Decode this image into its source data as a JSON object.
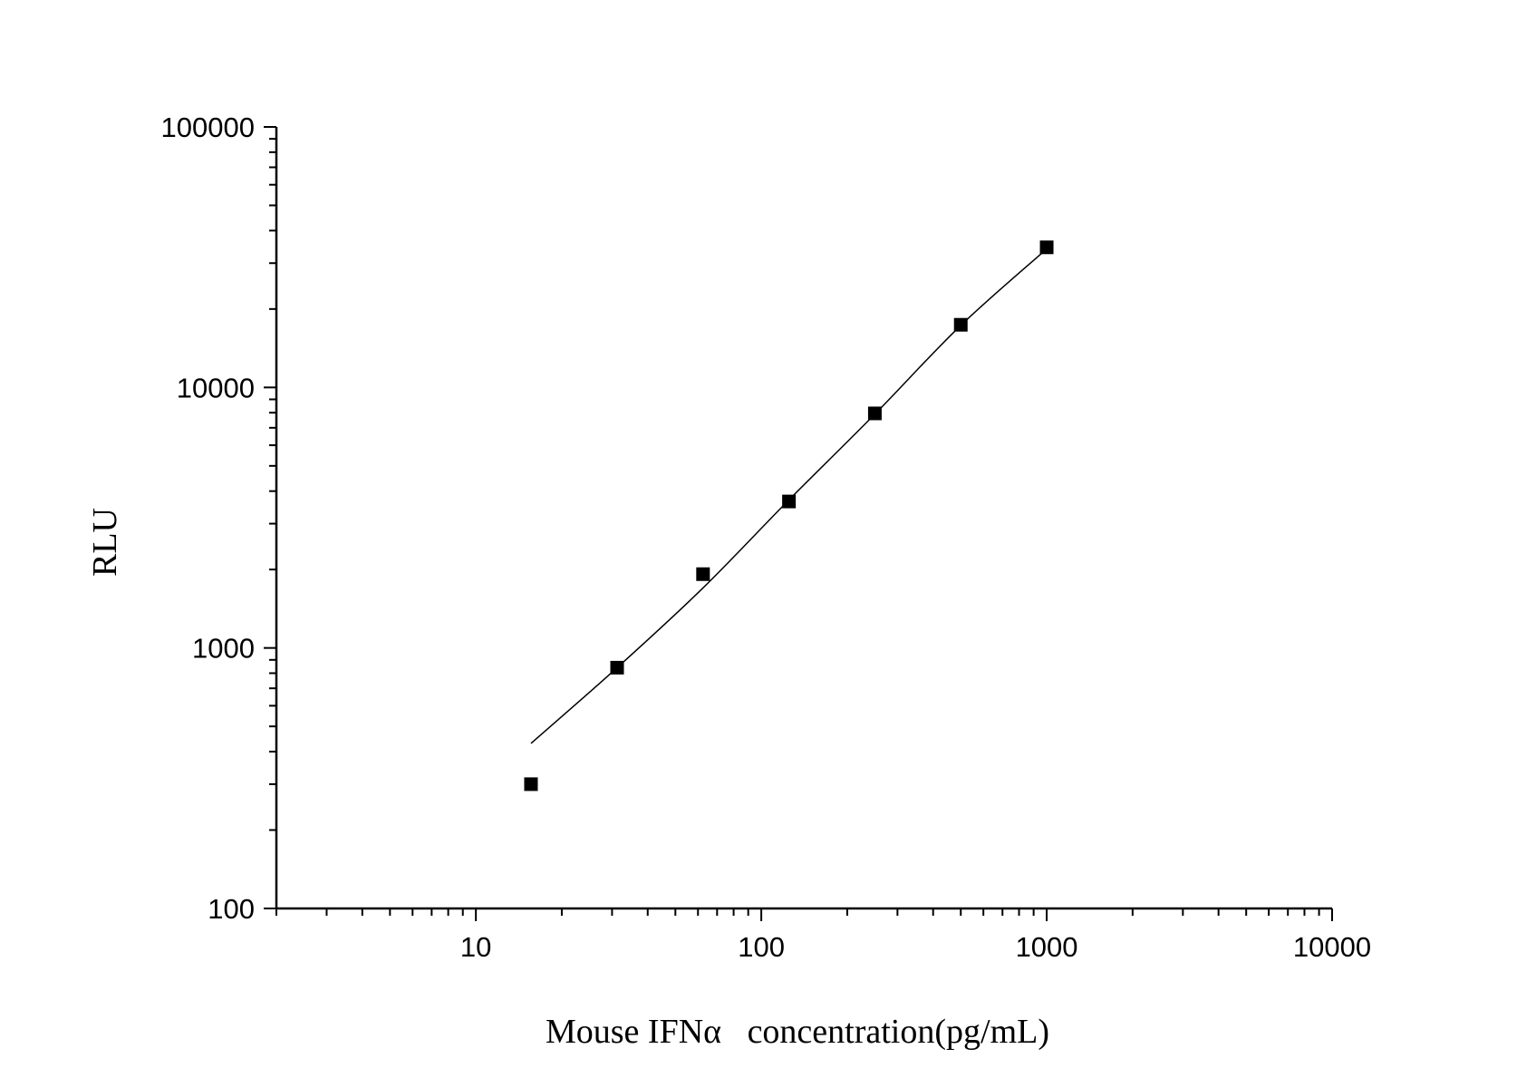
{
  "chart_data": {
    "type": "scatter",
    "xlabel": "Mouse IFNα   concentration(pg/mL)",
    "ylabel": "RLU",
    "x_scale": "log",
    "y_scale": "log",
    "xlim": [
      2,
      10000
    ],
    "ylim": [
      100,
      100000
    ],
    "x_ticks": [
      "10",
      "100",
      "1000",
      "10000"
    ],
    "y_ticks": [
      "100",
      "1000",
      "10000",
      "100000"
    ],
    "grid": false,
    "series": [
      {
        "type": "scatter",
        "marker": "square",
        "x": [
          15.6,
          31.25,
          62.5,
          125,
          250,
          500,
          1000
        ],
        "y": [
          300,
          840,
          1920,
          3650,
          7950,
          17400,
          34500
        ]
      },
      {
        "type": "line",
        "x": [
          15.6,
          31.25,
          62.5,
          125,
          250,
          500,
          1000
        ],
        "y": [
          430,
          840,
          1700,
          3700,
          7900,
          17300,
          34000
        ]
      }
    ],
    "colors": {
      "marker": "#000000",
      "line": "#000000",
      "axis": "#000000"
    }
  }
}
